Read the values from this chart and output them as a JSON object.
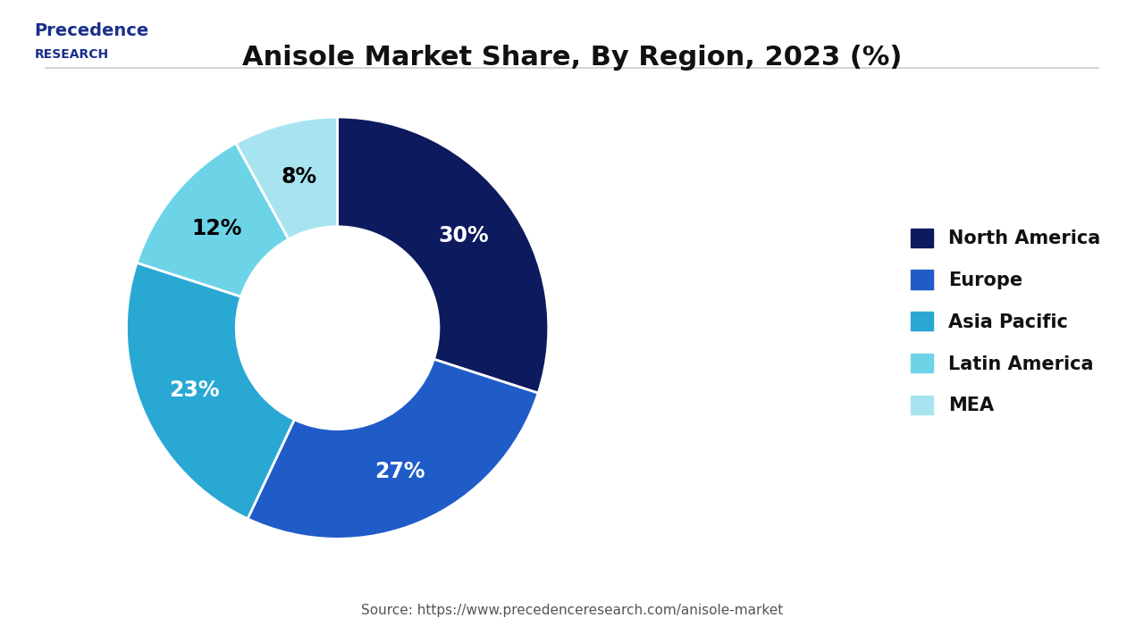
{
  "title": "Anisole Market Share, By Region, 2023 (%)",
  "labels": [
    "North America",
    "Europe",
    "Asia Pacific",
    "Latin America",
    "MEA"
  ],
  "values": [
    30,
    27,
    23,
    12,
    8
  ],
  "colors": [
    "#0d1a5e",
    "#1f5cc8",
    "#29a8d4",
    "#6dd4e8",
    "#a8e4f0"
  ],
  "pct_labels": [
    "30%",
    "27%",
    "23%",
    "12%",
    "8%"
  ],
  "pct_colors": [
    "white",
    "white",
    "white",
    "black",
    "black"
  ],
  "source_text": "Source: https://www.precedenceresearch.com/anisole-market",
  "logo_text_line1": "Precedence",
  "logo_text_line2": "RESEARCH",
  "background_color": "#ffffff",
  "title_fontsize": 22,
  "legend_fontsize": 15,
  "pct_fontsize": 17,
  "source_fontsize": 11
}
